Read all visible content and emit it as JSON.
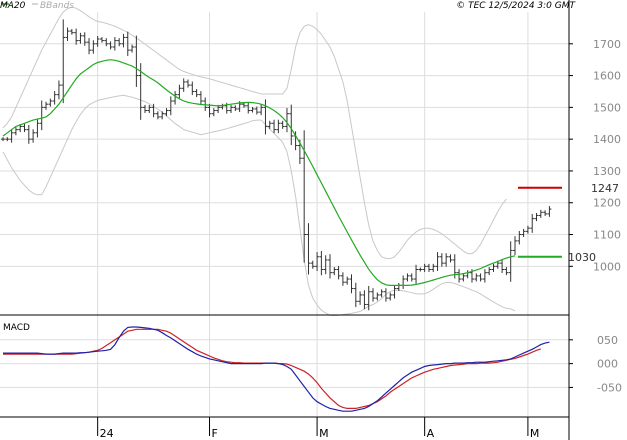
{
  "header": {
    "ma_label": "MA20",
    "bbands_label": "BBands",
    "source": "© TEC 12/5/2024 3:0 GMT"
  },
  "colors": {
    "price": "#333333",
    "ma20": "#22aa22",
    "bbands": "#c8c8c8",
    "resistance": "#cc0000",
    "support": "#22aa22",
    "macd_line": "#2020aa",
    "signal_line": "#cc2222",
    "grid": "#dddddd",
    "axis": "#000000"
  },
  "chart_data": [
    {
      "type": "line",
      "panel": "price",
      "ylim": [
        850,
        1800
      ],
      "y_ticks": [
        1000,
        1100,
        1200,
        1300,
        1400,
        1500,
        1600,
        1700
      ],
      "y_tick_labels": [
        "1000",
        "1100",
        "1200",
        "1300",
        "1400",
        "1500",
        "1600",
        "1700"
      ],
      "x_ticks": [
        {
          "index": 22,
          "label": "24"
        },
        {
          "index": 48,
          "label": "F"
        },
        {
          "index": 73,
          "label": "M"
        },
        {
          "index": 98,
          "label": "A"
        },
        {
          "index": 122,
          "label": "M"
        }
      ],
      "levels": [
        {
          "name": "resistance",
          "value": 1247,
          "label": "1247",
          "color": "#cc0000"
        },
        {
          "name": "support",
          "value": 1030,
          "label": "1030",
          "color": "#22aa22"
        }
      ],
      "series": [
        {
          "name": "MA20",
          "values": [
            1410,
            1420,
            1430,
            1440,
            1445,
            1450,
            1455,
            1460,
            1463,
            1466,
            1470,
            1480,
            1495,
            1510,
            1530,
            1550,
            1570,
            1590,
            1605,
            1615,
            1625,
            1635,
            1641,
            1645,
            1648,
            1650,
            1648,
            1645,
            1640,
            1635,
            1630,
            1622,
            1613,
            1603,
            1594,
            1586,
            1577,
            1566,
            1555,
            1545,
            1535,
            1527,
            1520,
            1516,
            1513,
            1511,
            1509,
            1508,
            1507,
            1506,
            1505,
            1506,
            1508,
            1510,
            1512,
            1514,
            1515,
            1516,
            1515,
            1513,
            1510,
            1505,
            1498,
            1490,
            1480,
            1468,
            1452,
            1433,
            1411,
            1388,
            1364,
            1339,
            1314,
            1288,
            1262,
            1236,
            1210,
            1184,
            1158,
            1133,
            1108,
            1083,
            1059,
            1035,
            1013,
            991,
            973,
            958,
            948,
            942,
            940,
            940,
            940,
            940,
            940,
            941,
            943,
            946,
            949,
            953,
            957,
            961,
            965,
            969,
            972,
            974,
            975,
            977,
            980,
            984,
            988,
            993,
            999,
            1005,
            1010,
            1015,
            1021,
            1026,
            1030,
            1033
          ]
        },
        {
          "name": "BBands upper",
          "values": [
            1435,
            1450,
            1470,
            1500,
            1530,
            1560,
            1590,
            1620,
            1650,
            1680,
            1705,
            1730,
            1755,
            1780,
            1800,
            1810,
            1815,
            1812,
            1804,
            1795,
            1785,
            1776,
            1770,
            1768,
            1764,
            1760,
            1755,
            1749,
            1742,
            1736,
            1727,
            1718,
            1709,
            1699,
            1689,
            1679,
            1669,
            1659,
            1649,
            1639,
            1629,
            1619,
            1613,
            1608,
            1604,
            1600,
            1596,
            1593,
            1590,
            1586,
            1582,
            1578,
            1574,
            1570,
            1566,
            1562,
            1558,
            1554,
            1550,
            1546,
            1542,
            1542,
            1542,
            1542,
            1542,
            1542,
            1560,
            1620,
            1690,
            1735,
            1755,
            1760,
            1755,
            1745,
            1730,
            1710,
            1690,
            1660,
            1620,
            1580,
            1520,
            1440,
            1360,
            1280,
            1200,
            1130,
            1080,
            1050,
            1030,
            1025,
            1024,
            1030,
            1045,
            1063,
            1082,
            1096,
            1108,
            1116,
            1120,
            1120,
            1116,
            1110,
            1102,
            1092,
            1081,
            1070,
            1059,
            1048,
            1040,
            1040,
            1050,
            1070,
            1095,
            1120,
            1146,
            1172,
            1194,
            1212
          ]
        },
        {
          "name": "BBands lower",
          "values": [
            1360,
            1335,
            1310,
            1290,
            1270,
            1255,
            1240,
            1230,
            1225,
            1225,
            1250,
            1280,
            1310,
            1340,
            1370,
            1400,
            1430,
            1455,
            1478,
            1495,
            1508,
            1515,
            1522,
            1525,
            1528,
            1531,
            1534,
            1536,
            1538,
            1535,
            1532,
            1528,
            1523,
            1518,
            1511,
            1503,
            1494,
            1485,
            1473,
            1461,
            1449,
            1440,
            1430,
            1426,
            1422,
            1418,
            1414,
            1417,
            1420,
            1423,
            1426,
            1429,
            1433,
            1437,
            1441,
            1445,
            1449,
            1453,
            1458,
            1460,
            1460,
            1446,
            1432,
            1418,
            1404,
            1390,
            1360,
            1300,
            1220,
            1120,
            1020,
            940,
            900,
            878,
            862,
            853,
            846,
            845,
            846,
            848,
            850,
            852,
            855,
            858,
            866,
            875,
            880,
            888,
            898,
            912,
            921,
            925,
            925,
            923,
            920,
            917,
            914,
            913,
            914,
            919,
            928,
            937,
            945,
            949,
            949,
            946,
            941,
            936,
            931,
            925,
            920,
            913,
            904,
            896,
            888,
            880,
            873,
            868,
            866,
            860
          ]
        },
        {
          "name": "Close",
          "values": [
            1400,
            1400,
            1420,
            1430,
            1440,
            1430,
            1400,
            1420,
            1450,
            1500,
            1510,
            1520,
            1540,
            1570,
            1720,
            1740,
            1735,
            1710,
            1725,
            1705,
            1680,
            1700,
            1715,
            1710,
            1700,
            1690,
            1710,
            1700,
            1720,
            1680,
            1690,
            1600,
            1500,
            1490,
            1500,
            1480,
            1470,
            1480,
            1490,
            1520,
            1540,
            1560,
            1580,
            1570,
            1550,
            1540,
            1520,
            1500,
            1480,
            1490,
            1500,
            1505,
            1490,
            1500,
            1495,
            1510,
            1505,
            1490,
            1495,
            1485,
            1500,
            1440,
            1450,
            1430,
            1450,
            1440,
            1480,
            1410,
            1380,
            1340,
            1100,
            1010,
            1000,
            1030,
            990,
            1020,
            980,
            990,
            970,
            950,
            960,
            930,
            890,
            910,
            880,
            920,
            900,
            910,
            920,
            900,
            910,
            930,
            940,
            960,
            970,
            960,
            990,
            990,
            1000,
            990,
            1000,
            1030,
            1010,
            1030,
            1020,
            980,
            960,
            970,
            980,
            960,
            970,
            960,
            980,
            990,
            1000,
            1010,
            990,
            980,
            1050,
            1080,
            1100,
            1110,
            1120,
            1150,
            1160,
            1170,
            1165,
            1180
          ]
        }
      ]
    },
    {
      "type": "line",
      "panel": "macd",
      "title": "MACD",
      "ylim": [
        -110,
        100
      ],
      "y_ticks": [
        50,
        0,
        -50
      ],
      "y_tick_labels": [
        "050",
        "000",
        "-050"
      ],
      "series": [
        {
          "name": "MACD",
          "values": [
            22,
            22,
            22,
            22,
            22,
            22,
            22,
            22,
            22,
            21,
            20,
            20,
            20,
            21,
            22,
            22,
            22,
            22,
            23,
            23,
            24,
            25,
            26,
            27,
            28,
            30,
            40,
            55,
            68,
            76,
            77,
            77,
            76,
            75,
            74,
            72,
            70,
            65,
            59,
            54,
            48,
            42,
            36,
            30,
            25,
            20,
            16,
            13,
            10,
            8,
            6,
            4,
            2,
            0,
            0,
            0,
            0,
            0,
            0,
            0,
            0,
            1,
            1,
            1,
            0,
            -2,
            -6,
            -12,
            -24,
            -36,
            -48,
            -60,
            -72,
            -80,
            -85,
            -90,
            -94,
            -96,
            -98,
            -100,
            -100,
            -100,
            -98,
            -96,
            -94,
            -90,
            -84,
            -78,
            -70,
            -62,
            -54,
            -46,
            -38,
            -30,
            -24,
            -18,
            -14,
            -10,
            -6,
            -4,
            -3,
            -2,
            -1,
            0,
            0,
            1,
            1,
            1,
            2,
            2,
            3,
            3,
            3,
            4,
            5,
            6,
            7,
            8,
            10,
            14,
            18,
            22,
            26,
            30,
            35,
            40,
            43,
            45
          ]
        },
        {
          "name": "Signal",
          "values": [
            20,
            20,
            20,
            20,
            20,
            20,
            20,
            20,
            20,
            20,
            20,
            20,
            20,
            20,
            20,
            20,
            20,
            21,
            22,
            23,
            24,
            26,
            28,
            32,
            38,
            44,
            50,
            56,
            62,
            68,
            70,
            72,
            72,
            72,
            72,
            72,
            72,
            70,
            68,
            64,
            58,
            52,
            46,
            40,
            34,
            28,
            24,
            20,
            16,
            12,
            9,
            6,
            4,
            3,
            2,
            2,
            1,
            1,
            1,
            1,
            1,
            1,
            1,
            1,
            0,
            0,
            -1,
            -4,
            -8,
            -12,
            -16,
            -22,
            -30,
            -40,
            -52,
            -62,
            -72,
            -80,
            -88,
            -92,
            -94,
            -94,
            -94,
            -92,
            -90,
            -88,
            -84,
            -80,
            -74,
            -68,
            -60,
            -54,
            -48,
            -42,
            -36,
            -30,
            -26,
            -22,
            -18,
            -15,
            -12,
            -10,
            -8,
            -6,
            -4,
            -3,
            -2,
            -1,
            0,
            0,
            0,
            1,
            1,
            1,
            2,
            3,
            5,
            7,
            9,
            11,
            14,
            17,
            20,
            24,
            28,
            31
          ]
        }
      ]
    }
  ]
}
